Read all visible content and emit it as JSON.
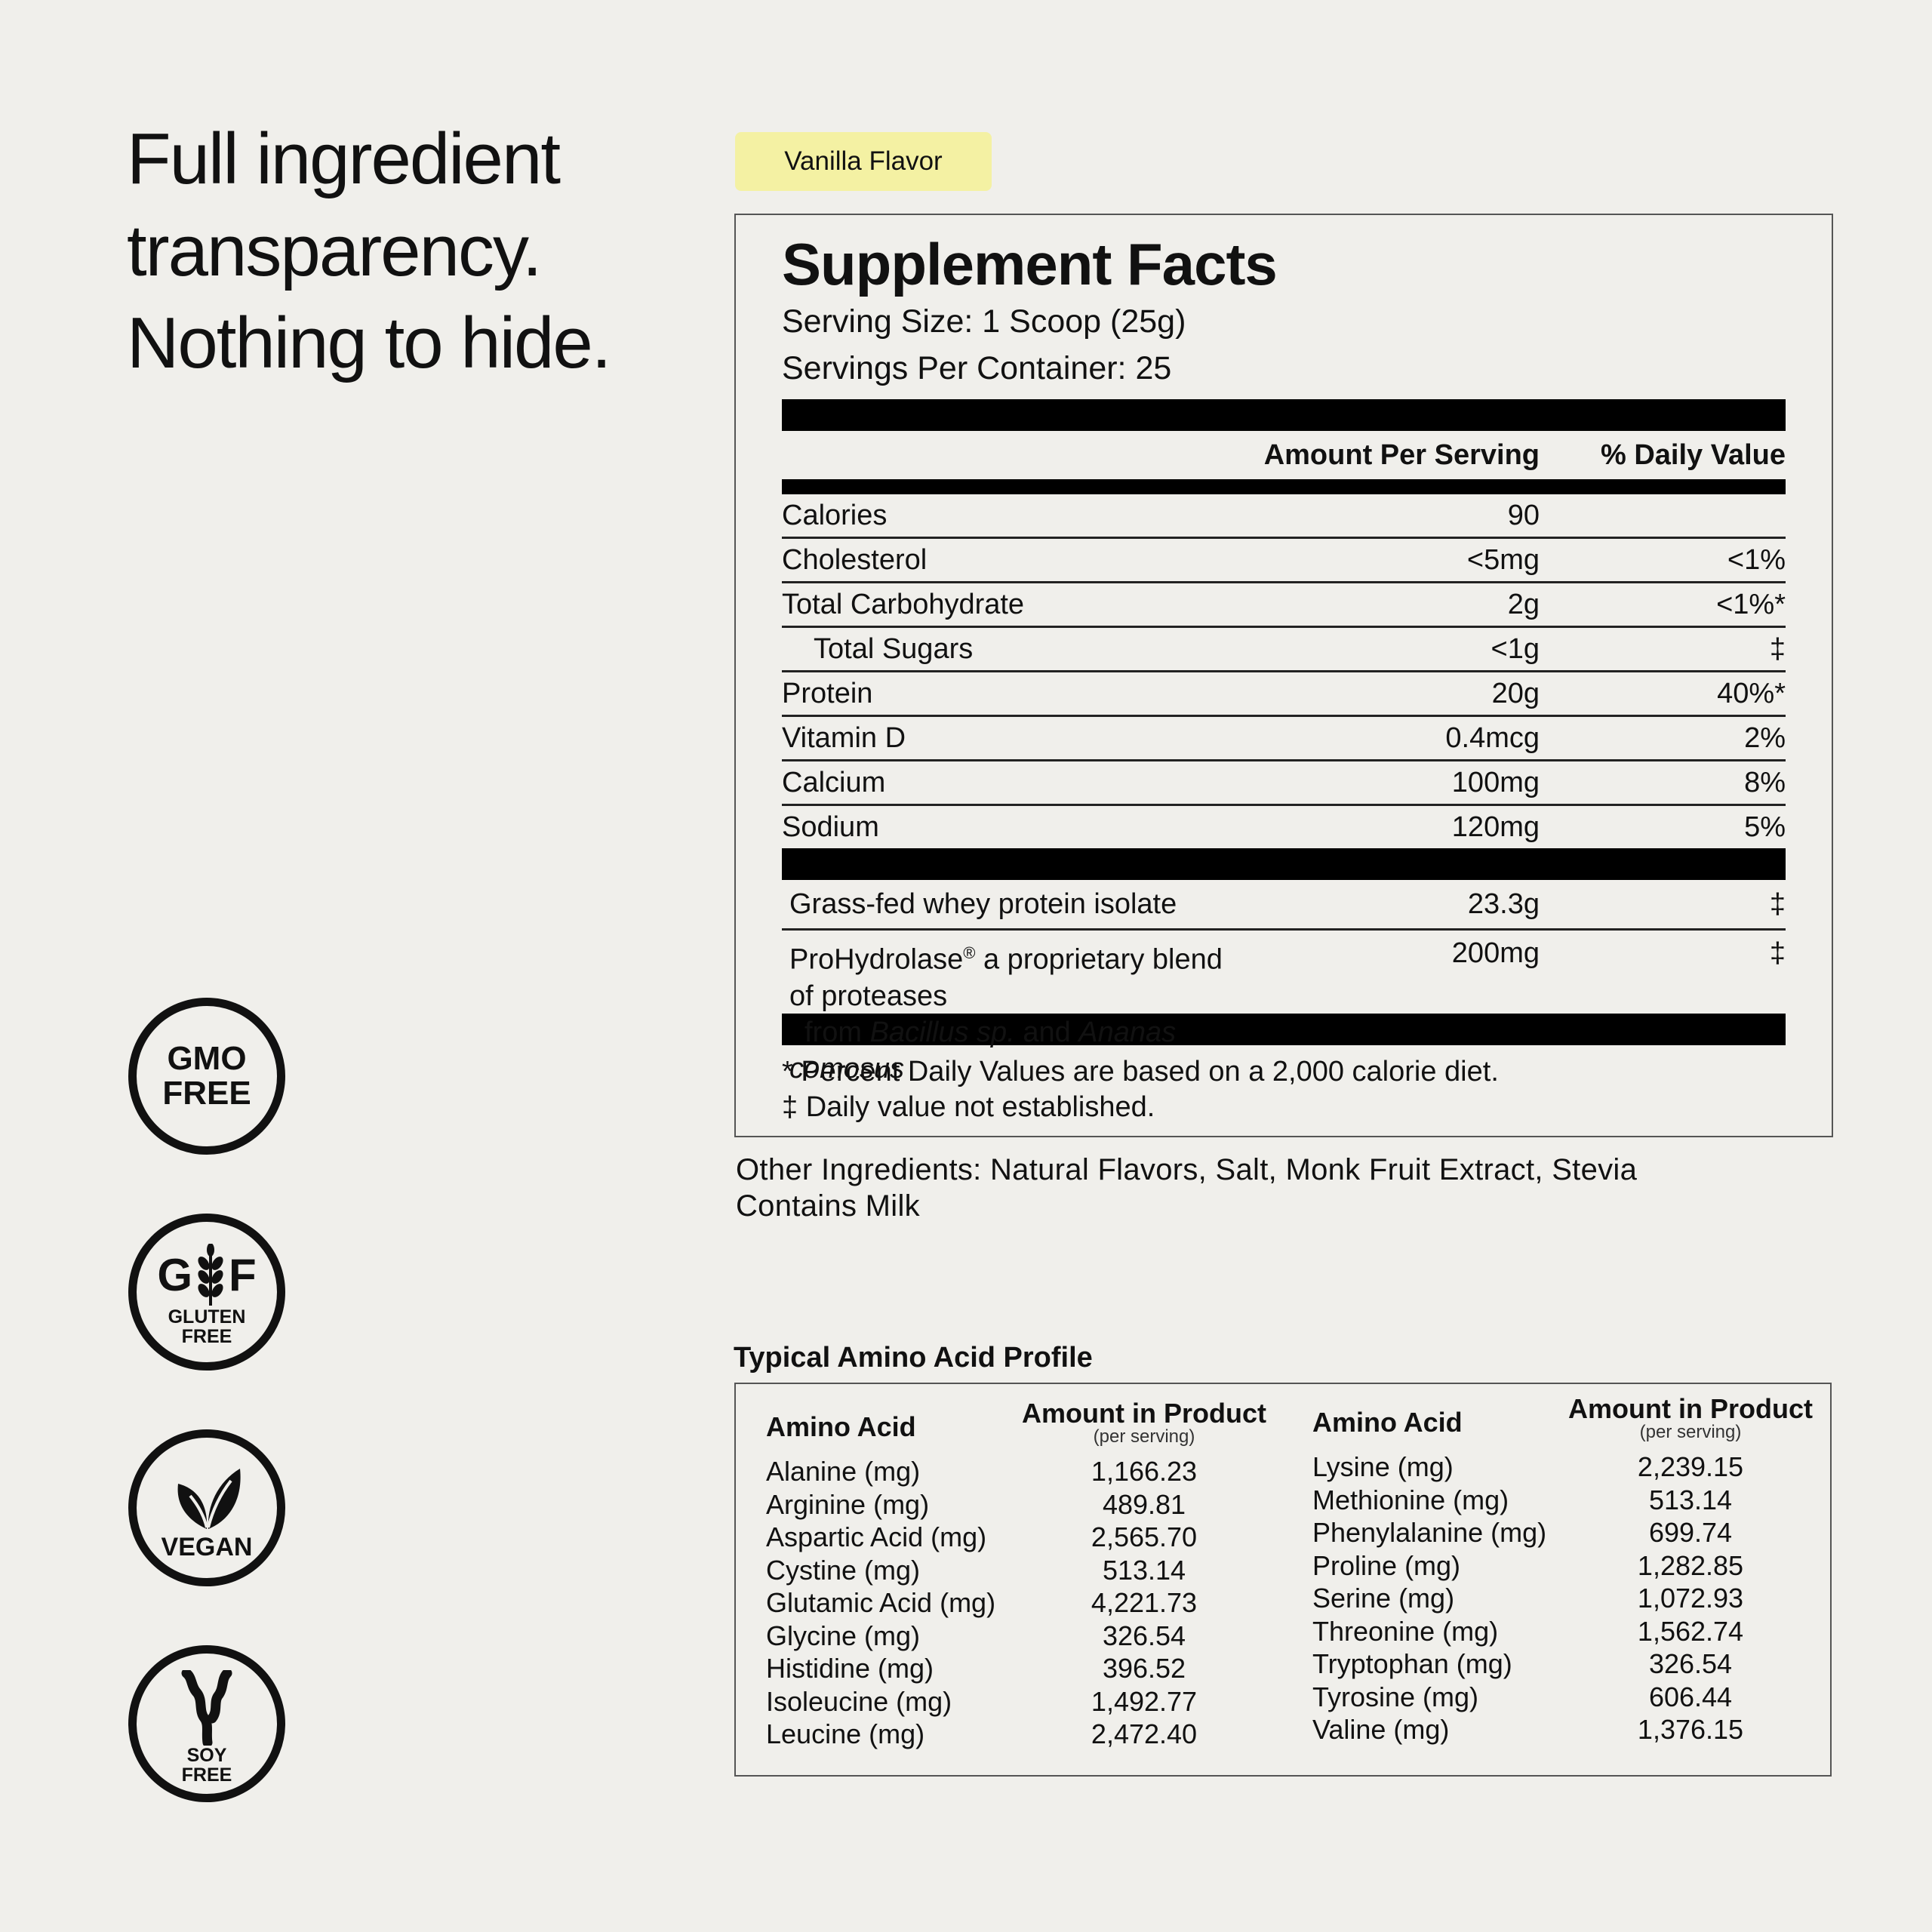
{
  "headline": [
    "Full ingredient",
    "transparency.",
    "Nothing to hide."
  ],
  "badges": {
    "gmo": [
      "GMO",
      "FREE"
    ],
    "gluten": {
      "left": "G",
      "right": "F",
      "label": [
        "GLUTEN",
        "FREE"
      ]
    },
    "vegan": "VEGAN",
    "soy": [
      "SOY",
      "FREE"
    ]
  },
  "flavor": "Vanilla Flavor",
  "facts": {
    "title": "Supplement Facts",
    "serving_size": "Serving Size: 1 Scoop (25g)",
    "servings_per_container": "Servings Per Container: 25",
    "col_amount": "Amount Per Serving",
    "col_dv": "% Daily Value",
    "rows": [
      {
        "name": "Calories",
        "amount": "90",
        "dv": ""
      },
      {
        "name": "Cholesterol",
        "amount": "<5mg",
        "dv": "<1%"
      },
      {
        "name": "Total Carbohydrate",
        "amount": "2g",
        "dv": "<1%*"
      },
      {
        "name": "Total Sugars",
        "amount": "<1g",
        "dv": "‡"
      },
      {
        "name": "Protein",
        "amount": "20g",
        "dv": "40%*"
      },
      {
        "name": "Vitamin D",
        "amount": "0.4mcg",
        "dv": "2%"
      },
      {
        "name": "Calcium",
        "amount": "100mg",
        "dv": "8%"
      },
      {
        "name": "Sodium",
        "amount": "120mg",
        "dv": "5%"
      }
    ],
    "ingredients": [
      {
        "name": "Grass-fed whey protein isolate",
        "amount": "23.3g",
        "dv": "‡"
      },
      {
        "name": "ProHydrolase",
        "reg": "®",
        "name_rest": " a proprietary blend of proteases",
        "line2_a": "from ",
        "line2_b": "Bacillus sp.",
        "line2_c": " and ",
        "line2_d": "Ananas comosus",
        "amount": "200mg",
        "dv": "‡"
      }
    ],
    "footnote1": "* Percent Daily Values are based on a 2,000 calorie diet.",
    "footnote2": "‡ Daily value not established."
  },
  "other_ingredients": "Other Ingredients: Natural Flavors, Salt, Monk Fruit Extract, Stevia",
  "contains": "Contains Milk",
  "amino": {
    "title": "Typical Amino Acid Profile",
    "col_name": "Amino Acid",
    "col_amount": "Amount in Product",
    "col_sub": "(per serving)",
    "left": [
      {
        "name": "Alanine (mg)",
        "value": "1,166.23"
      },
      {
        "name": "Arginine (mg)",
        "value": "489.81"
      },
      {
        "name": "Aspartic Acid (mg)",
        "value": "2,565.70"
      },
      {
        "name": "Cystine (mg)",
        "value": "513.14"
      },
      {
        "name": "Glutamic Acid (mg)",
        "value": "4,221.73"
      },
      {
        "name": "Glycine (mg)",
        "value": "326.54"
      },
      {
        "name": "Histidine (mg)",
        "value": "396.52"
      },
      {
        "name": "Isoleucine (mg)",
        "value": "1,492.77"
      },
      {
        "name": "Leucine (mg)",
        "value": "2,472.40"
      }
    ],
    "right": [
      {
        "name": "Lysine (mg)",
        "value": "2,239.15"
      },
      {
        "name": "Methionine (mg)",
        "value": "513.14"
      },
      {
        "name": "Phenylalanine (mg)",
        "value": "699.74"
      },
      {
        "name": "Proline (mg)",
        "value": "1,282.85"
      },
      {
        "name": "Serine (mg)",
        "value": "1,072.93"
      },
      {
        "name": "Threonine (mg)",
        "value": "1,562.74"
      },
      {
        "name": "Tryptophan (mg)",
        "value": "326.54"
      },
      {
        "name": "Tyrosine (mg)",
        "value": "606.44"
      },
      {
        "name": "Valine (mg)",
        "value": "1,376.15"
      }
    ]
  }
}
